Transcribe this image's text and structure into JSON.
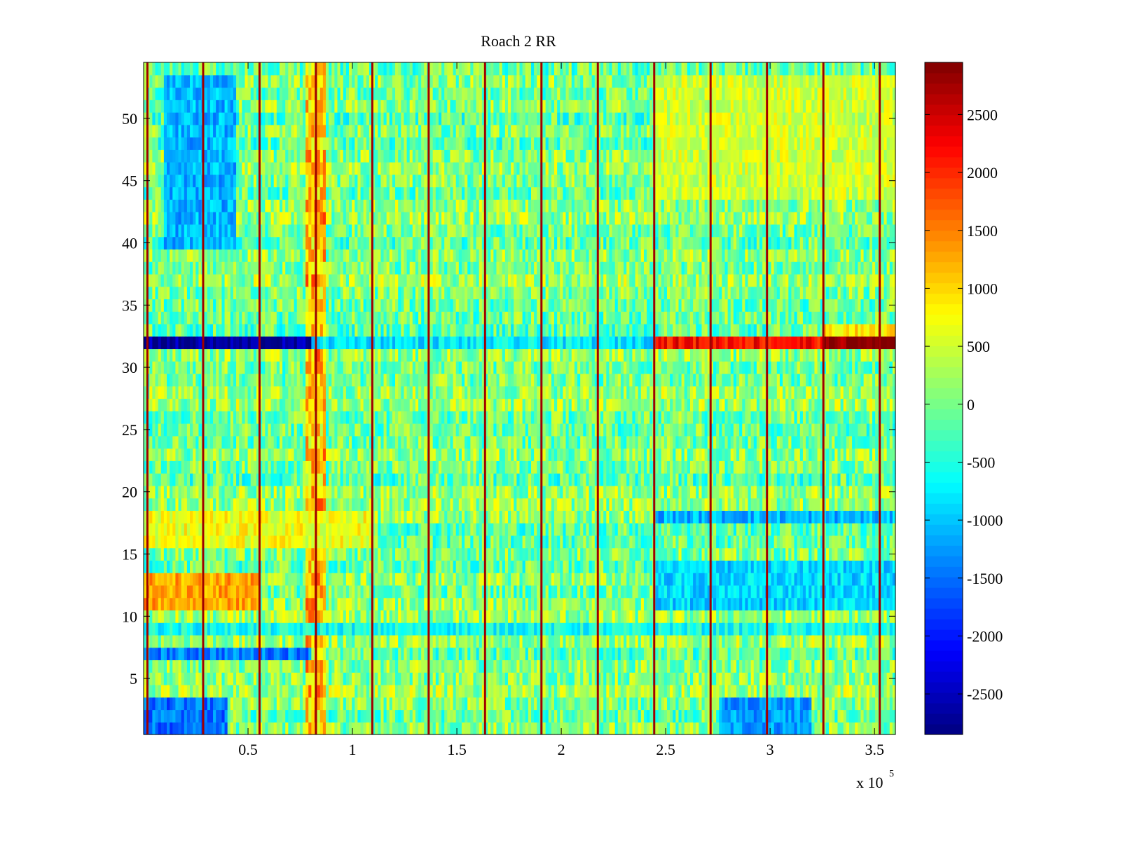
{
  "chart_data": {
    "type": "heatmap",
    "title": "Roach 2 RR",
    "x": {
      "range": [
        0,
        360000
      ],
      "ticks": [
        0.5,
        1,
        1.5,
        2,
        2.5,
        3,
        3.5
      ],
      "tick_labels": [
        "0.5",
        "1",
        "1.5",
        "2",
        "2.5",
        "3",
        "3.5"
      ],
      "multiplier_label": "x 10",
      "multiplier_exponent": "5"
    },
    "y": {
      "range": [
        0.5,
        54.5
      ],
      "ticks": [
        5,
        10,
        15,
        20,
        25,
        30,
        35,
        40,
        45,
        50
      ],
      "tick_labels": [
        "5",
        "10",
        "15",
        "20",
        "25",
        "30",
        "35",
        "40",
        "45",
        "50"
      ],
      "rows": 54
    },
    "colorbar": {
      "colormap": "jet",
      "range": [
        -2850,
        2950
      ],
      "ticks": [
        -2500,
        -2000,
        -1500,
        -1000,
        -500,
        0,
        500,
        1000,
        1500,
        2000,
        2500
      ],
      "tick_labels": [
        "-2500",
        "-2000",
        "-1500",
        "-1000",
        "-500",
        "0",
        "500",
        "1000",
        "1500",
        "2000",
        "2500"
      ]
    },
    "periodic_vertical_lines_x": [
      1800,
      28500,
      55500,
      82500,
      109500,
      136500,
      163500,
      190500,
      217500,
      244500,
      271500,
      298500,
      325500,
      352500
    ],
    "row_bands": [
      {
        "rows": [
          1,
          3
        ],
        "x_range": [
          0,
          40000
        ],
        "value": -1500
      },
      {
        "rows": [
          1,
          3
        ],
        "x_range": [
          275000,
          320000
        ],
        "value": -1200
      },
      {
        "rows": [
          7,
          7
        ],
        "x_range": [
          0,
          80000
        ],
        "value": -1400
      },
      {
        "rows": [
          9,
          9
        ],
        "x_range": [
          0,
          360000
        ],
        "value": -600
      },
      {
        "rows": [
          11,
          13
        ],
        "x_range": [
          0,
          55000
        ],
        "value": 1300
      },
      {
        "rows": [
          11,
          14
        ],
        "x_range": [
          245000,
          360000
        ],
        "value": -900
      },
      {
        "rows": [
          16,
          18
        ],
        "x_range": [
          0,
          110000
        ],
        "value": 700
      },
      {
        "rows": [
          18,
          18
        ],
        "x_range": [
          245000,
          360000
        ],
        "value": -1100
      },
      {
        "rows": [
          32,
          32
        ],
        "x_range": [
          0,
          80000
        ],
        "value": -2700
      },
      {
        "rows": [
          32,
          32
        ],
        "x_range": [
          80000,
          245000
        ],
        "value": -800
      },
      {
        "rows": [
          32,
          32
        ],
        "x_range": [
          245000,
          325000
        ],
        "value": 2200
      },
      {
        "rows": [
          32,
          32
        ],
        "x_range": [
          325000,
          360000
        ],
        "value": 2900
      },
      {
        "rows": [
          33,
          33
        ],
        "x_range": [
          325000,
          360000
        ],
        "value": 900
      },
      {
        "rows": [
          40,
          53
        ],
        "x_range": [
          10000,
          45000
        ],
        "value": -1100
      },
      {
        "rows": [
          44,
          53
        ],
        "x_range": [
          245000,
          360000
        ],
        "value": 500
      }
    ],
    "column_bands": [
      {
        "x_range": [
          78000,
          87000
        ],
        "value": 1100
      }
    ]
  }
}
